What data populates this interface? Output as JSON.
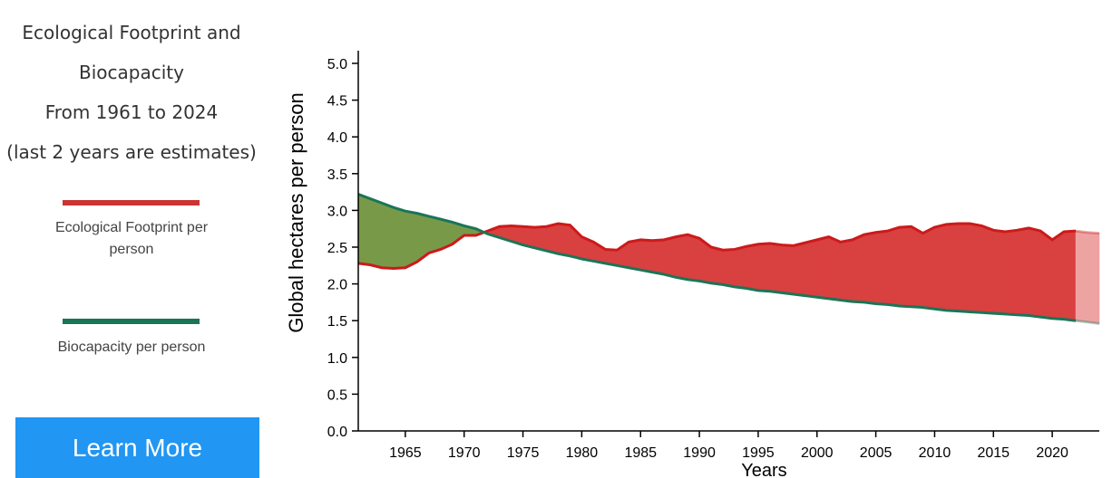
{
  "sidebar": {
    "title_lines": [
      "Ecological Footprint and",
      "Biocapacity",
      "From 1961 to 2024",
      "(last 2 years are estimates)"
    ],
    "legend": [
      {
        "label": "Ecological Footprint per person",
        "color": "#cc3333"
      },
      {
        "label": "Biocapacity per person",
        "color": "#1a7558"
      }
    ],
    "button_label": "Learn More"
  },
  "colors": {
    "footprint_line": "#cc1a1a",
    "biocapacity_line": "#1a7558",
    "deficit_fill": "#d94040",
    "reserve_fill": "#789a48",
    "estimate_fill": "#eea3a3",
    "button": "#2196f3"
  },
  "chart_data": {
    "type": "area",
    "xlabel": "Years",
    "ylabel": "Global hectares per person",
    "xlim": [
      1961,
      2024
    ],
    "ylim": [
      0,
      5.0
    ],
    "y_ticks": [
      "0.0",
      "0.5",
      "1.0",
      "1.5",
      "2.0",
      "2.5",
      "3.0",
      "3.5",
      "4.0",
      "4.5",
      "5.0"
    ],
    "x_ticks": [
      "1965",
      "1970",
      "1975",
      "1980",
      "1985",
      "1990",
      "1995",
      "2000",
      "2005",
      "2010",
      "2015",
      "2020"
    ],
    "estimate_from": 2022,
    "x": [
      1961,
      1962,
      1963,
      1964,
      1965,
      1966,
      1967,
      1968,
      1969,
      1970,
      1971,
      1972,
      1973,
      1974,
      1975,
      1976,
      1977,
      1978,
      1979,
      1980,
      1981,
      1982,
      1983,
      1984,
      1985,
      1986,
      1987,
      1988,
      1989,
      1990,
      1991,
      1992,
      1993,
      1994,
      1995,
      1996,
      1997,
      1998,
      1999,
      2000,
      2001,
      2002,
      2003,
      2004,
      2005,
      2006,
      2007,
      2008,
      2009,
      2010,
      2011,
      2012,
      2013,
      2014,
      2015,
      2016,
      2017,
      2018,
      2019,
      2020,
      2021,
      2022,
      2023,
      2024
    ],
    "series": [
      {
        "name": "Ecological Footprint per person",
        "values": [
          2.28,
          2.26,
          2.22,
          2.21,
          2.22,
          2.3,
          2.42,
          2.47,
          2.54,
          2.66,
          2.66,
          2.72,
          2.78,
          2.79,
          2.78,
          2.77,
          2.78,
          2.82,
          2.8,
          2.64,
          2.57,
          2.47,
          2.46,
          2.57,
          2.6,
          2.59,
          2.6,
          2.64,
          2.67,
          2.62,
          2.5,
          2.46,
          2.47,
          2.51,
          2.54,
          2.55,
          2.53,
          2.52,
          2.56,
          2.6,
          2.64,
          2.57,
          2.6,
          2.67,
          2.7,
          2.72,
          2.77,
          2.78,
          2.69,
          2.77,
          2.81,
          2.82,
          2.82,
          2.79,
          2.73,
          2.71,
          2.73,
          2.76,
          2.72,
          2.6,
          2.71,
          2.72,
          2.7,
          2.69
        ]
      },
      {
        "name": "Biocapacity per person",
        "values": [
          3.22,
          3.16,
          3.1,
          3.04,
          2.99,
          2.96,
          2.92,
          2.88,
          2.84,
          2.79,
          2.75,
          2.68,
          2.63,
          2.58,
          2.53,
          2.49,
          2.45,
          2.41,
          2.38,
          2.34,
          2.31,
          2.28,
          2.25,
          2.22,
          2.19,
          2.16,
          2.13,
          2.09,
          2.06,
          2.04,
          2.01,
          1.99,
          1.96,
          1.94,
          1.91,
          1.9,
          1.88,
          1.86,
          1.84,
          1.82,
          1.8,
          1.78,
          1.76,
          1.75,
          1.73,
          1.72,
          1.7,
          1.69,
          1.68,
          1.66,
          1.64,
          1.63,
          1.62,
          1.61,
          1.6,
          1.59,
          1.58,
          1.57,
          1.55,
          1.53,
          1.52,
          1.5,
          1.48,
          1.46
        ]
      }
    ]
  }
}
